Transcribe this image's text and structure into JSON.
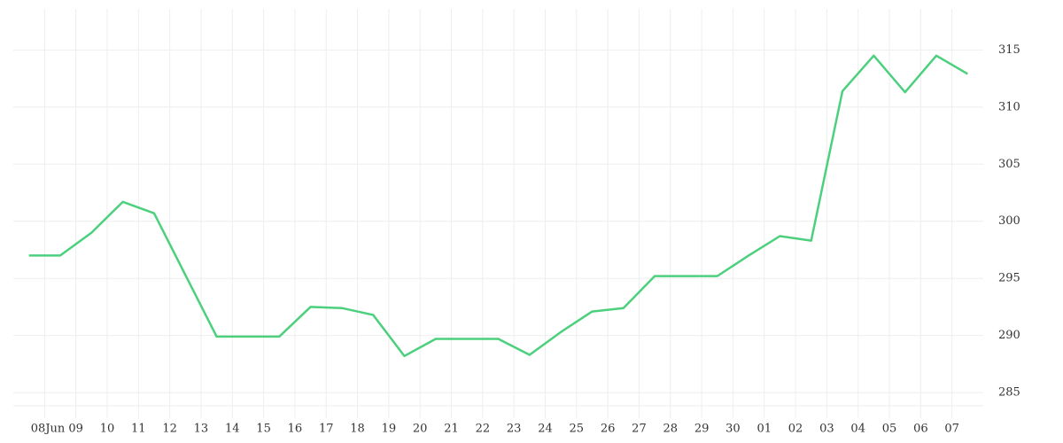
{
  "chart_data": {
    "type": "line",
    "x": [
      0,
      1,
      2,
      3,
      4,
      5,
      6,
      7,
      8,
      9,
      10,
      11,
      12,
      13,
      14,
      15,
      16,
      17,
      18,
      19,
      20,
      21,
      22,
      23,
      24,
      25,
      26,
      27,
      28,
      29,
      30
    ],
    "values": [
      297.0,
      297.0,
      299.0,
      301.7,
      300.7,
      295.3,
      289.9,
      289.9,
      289.9,
      292.5,
      292.4,
      291.8,
      288.2,
      289.7,
      289.7,
      289.7,
      288.3,
      290.3,
      292.1,
      292.4,
      295.2,
      295.2,
      295.2,
      297.0,
      298.7,
      298.3,
      311.4,
      314.5,
      311.3,
      314.5,
      312.9
    ],
    "color": "#4cd07d",
    "xlim": [
      -0.5,
      30.5
    ],
    "xticks": [
      {
        "value": 0.5,
        "label": "08"
      },
      {
        "value": 1.5,
        "label": "09"
      },
      {
        "value": 2.5,
        "label": "10"
      },
      {
        "value": 3.5,
        "label": "11"
      },
      {
        "value": 4.5,
        "label": "12"
      },
      {
        "value": 5.5,
        "label": "13"
      },
      {
        "value": 6.5,
        "label": "14"
      },
      {
        "value": 7.5,
        "label": "15"
      },
      {
        "value": 8.5,
        "label": "16"
      },
      {
        "value": 9.5,
        "label": "17"
      },
      {
        "value": 10.5,
        "label": "18"
      },
      {
        "value": 11.5,
        "label": "19"
      },
      {
        "value": 12.5,
        "label": "20"
      },
      {
        "value": 13.5,
        "label": "21"
      },
      {
        "value": 14.5,
        "label": "22"
      },
      {
        "value": 15.5,
        "label": "23"
      },
      {
        "value": 16.5,
        "label": "24"
      },
      {
        "value": 17.5,
        "label": "25"
      },
      {
        "value": 18.5,
        "label": "26"
      },
      {
        "value": 19.5,
        "label": "27"
      },
      {
        "value": 20.5,
        "label": "28"
      },
      {
        "value": 21.5,
        "label": "29"
      },
      {
        "value": 22.5,
        "label": "30"
      },
      {
        "value": 23.5,
        "label": "01"
      },
      {
        "value": 24.5,
        "label": "02"
      },
      {
        "value": 25.5,
        "label": "03"
      },
      {
        "value": 26.5,
        "label": "04"
      },
      {
        "value": 27.5,
        "label": "05"
      },
      {
        "value": 28.5,
        "label": "06"
      },
      {
        "value": 29.5,
        "label": "07"
      }
    ],
    "month_label": "Jun",
    "ylim": [
      283.3,
      318.6
    ],
    "yticks": [
      285,
      290,
      295,
      300,
      305,
      310,
      315
    ],
    "grid": true
  }
}
